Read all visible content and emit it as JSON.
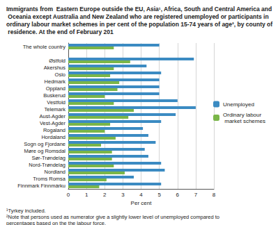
{
  "chart_data": {
    "type": "bar",
    "orientation": "horizontal",
    "title": "Immigrants from  Eastern Europe outside the EU, Asia¹, Africa, South and Central America and Oceania except Australia and New Zealand who are registered unemployed or participants in ordinary labour market schemes in per cent of the population 15-74 years of age², by county of residence. At the end of February 201",
    "x_label": "Per cent",
    "notes": [
      "¹Tyrkey included.",
      "²Note that persons used as numerator give a slightly lower level of unemployed compared to percentages based on the the labour force."
    ],
    "categories": [
      "The whole country",
      null,
      "Østfold",
      "Akershus",
      "Oslo",
      "Hedmark",
      "Oppland",
      "Buskerud",
      "Vestfold",
      "Telemark",
      "Aust-Agder",
      "Vest-Agder",
      "Rogaland",
      "Hordaland",
      "Sogn og Fjordane",
      "Møre og Romsdal",
      "Sør-Trøndelag",
      "Nord-Trøndelag",
      "Nordland",
      "Troms Romsa",
      "Finnmark Finnmárku"
    ],
    "series": [
      {
        "name": "Unemployed",
        "color": "#3b8bc2",
        "values": [
          5.0,
          null,
          6.9,
          4.3,
          5.1,
          5.0,
          5.0,
          5.0,
          6.0,
          7.0,
          5.9,
          5.1,
          4.1,
          4.4,
          4.8,
          4.2,
          4.4,
          5.1,
          5.3,
          3.6,
          5.1
        ]
      },
      {
        "name": "Ordinary labour market schemes",
        "color": "#7ab648",
        "values": [
          2.5,
          null,
          3.4,
          2.5,
          2.3,
          2.8,
          2.7,
          2.0,
          2.5,
          3.6,
          3.3,
          2.3,
          2.0,
          2.6,
          1.8,
          2.4,
          2.4,
          2.5,
          3.1,
          2.1,
          1.7
        ]
      }
    ],
    "xlim": [
      0,
      8
    ],
    "xticks": [
      0,
      1,
      2,
      3,
      4,
      5,
      6,
      7,
      8
    ],
    "grid": true,
    "legend": "right"
  }
}
